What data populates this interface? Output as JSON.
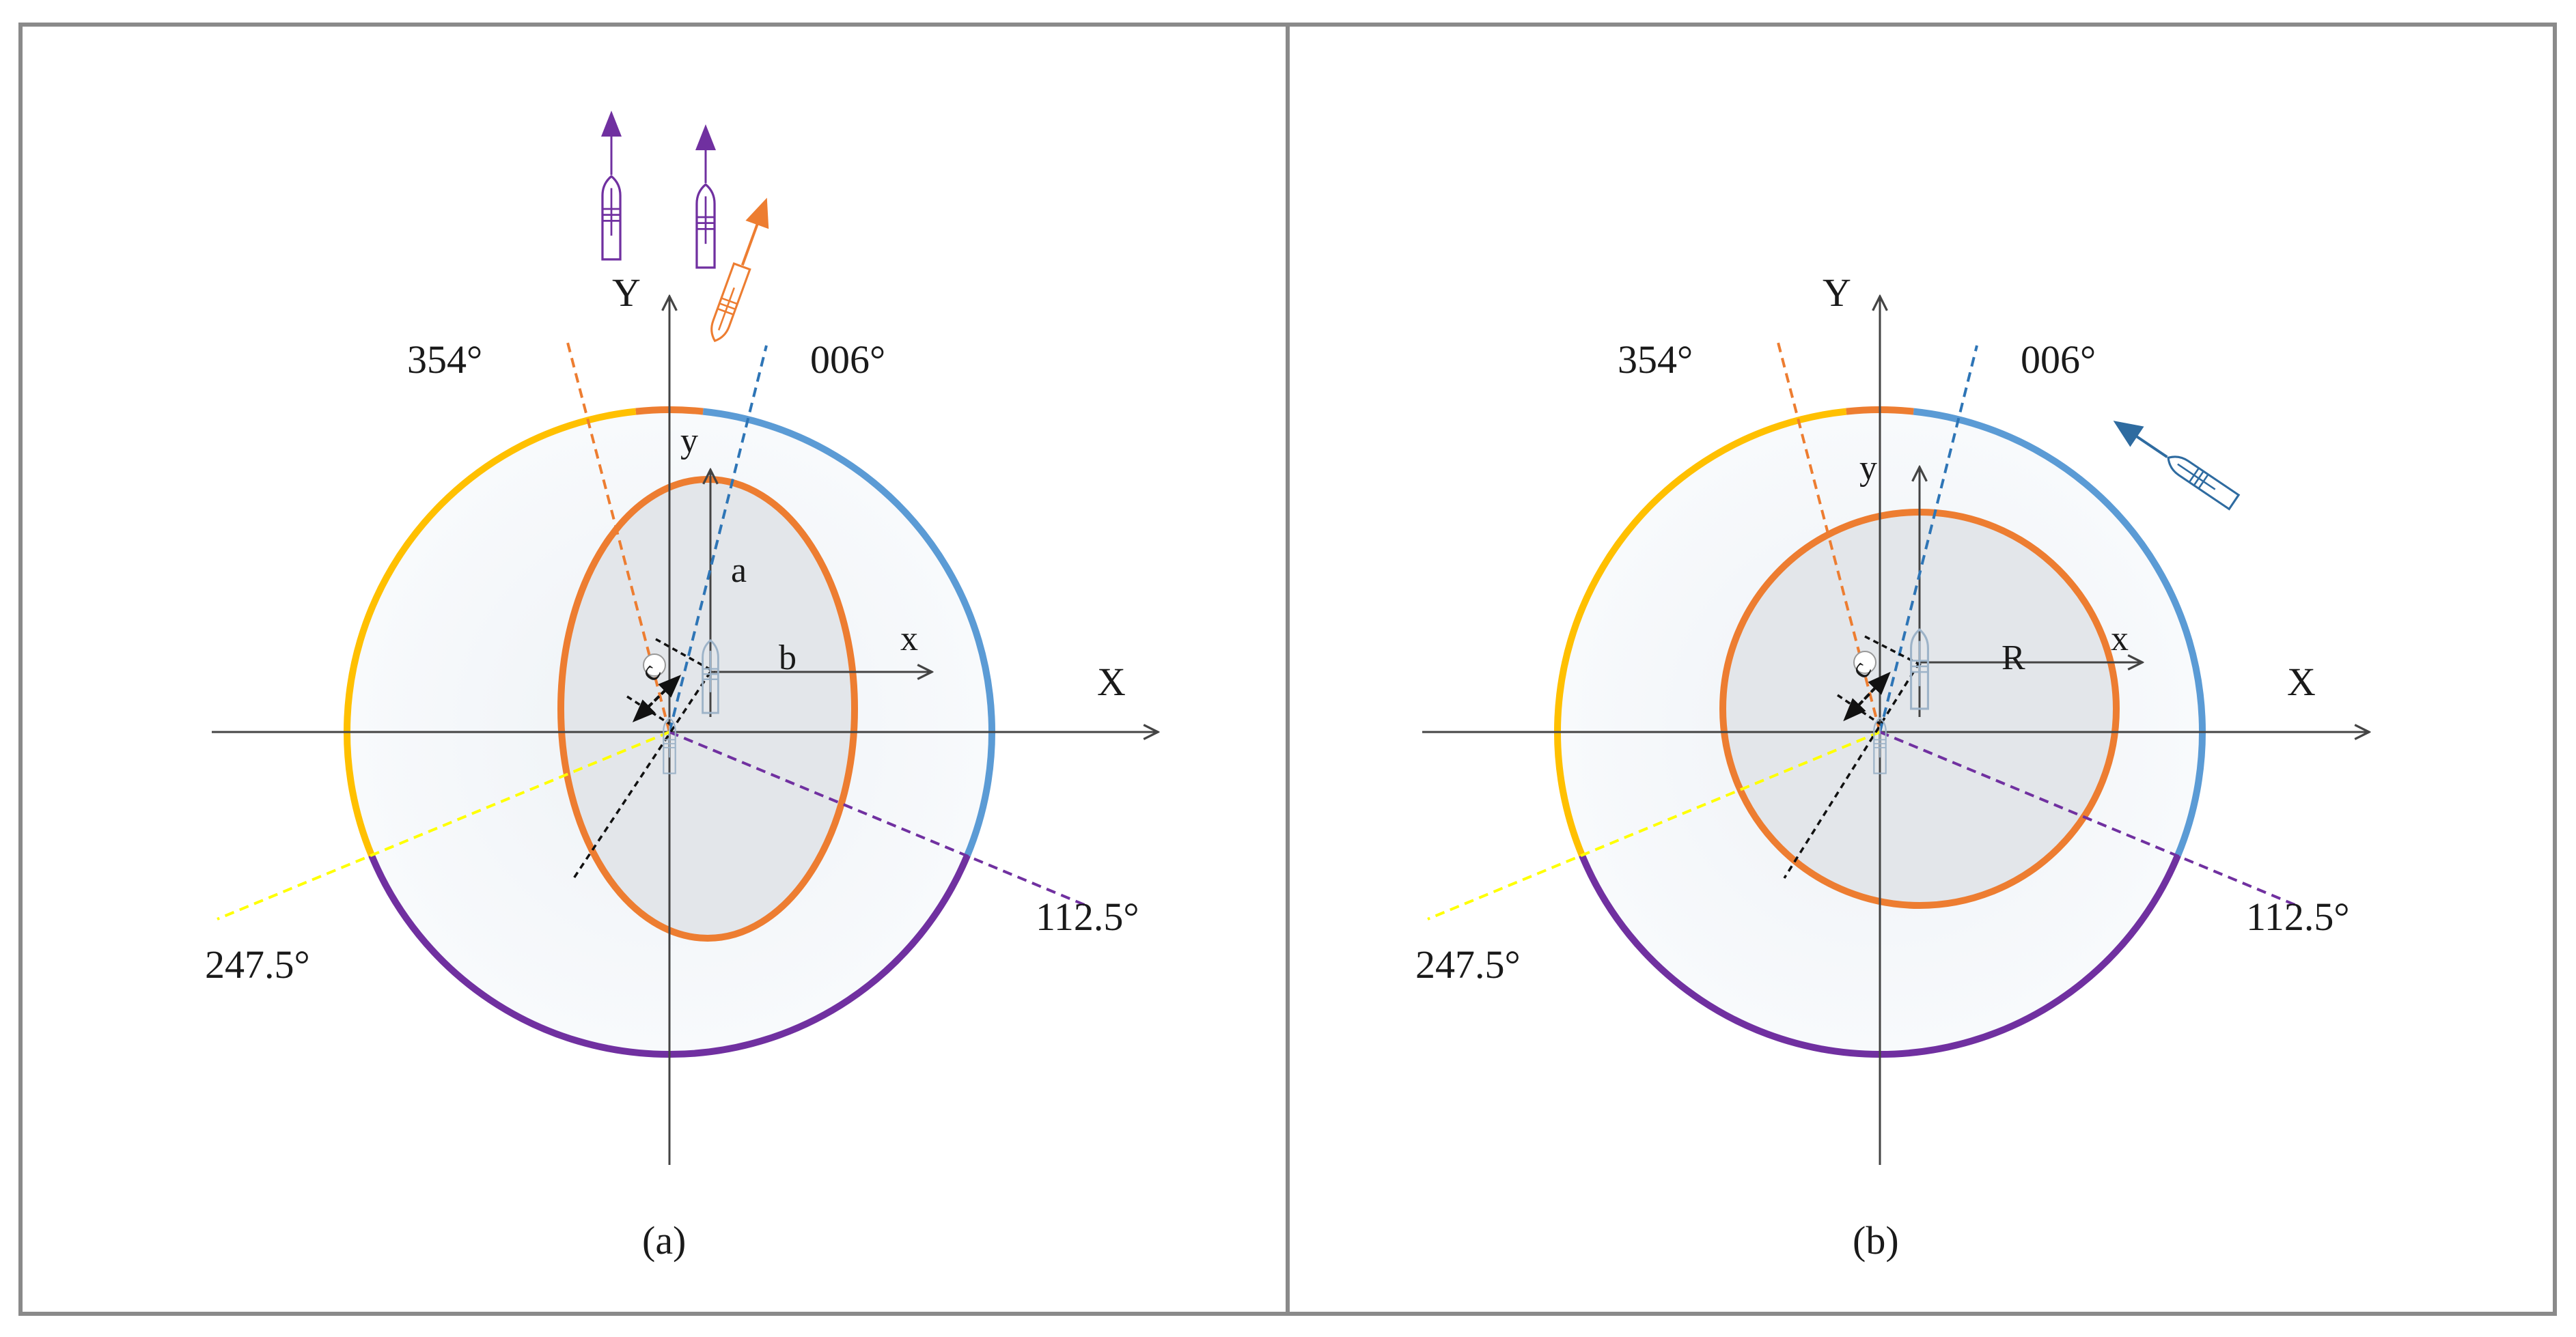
{
  "panels": [
    {
      "caption": "(a)",
      "axis_x": "X",
      "axis_y": "Y",
      "local_x": "x",
      "local_y": "y",
      "shape": "ellipse",
      "dim_a": "a",
      "dim_b": "b",
      "dim_c": "c",
      "sector_labels": [
        "354°",
        "006°",
        "112.5°",
        "247.5°"
      ]
    },
    {
      "caption": "(b)",
      "axis_x": "X",
      "axis_y": "Y",
      "local_x": "x",
      "local_y": "y",
      "shape": "circle",
      "dim_r": "R",
      "dim_c": "c",
      "sector_labels": [
        "354°",
        "006°",
        "112.5°",
        "247.5°"
      ]
    }
  ],
  "colors": {
    "sector_bow": "#ED7D31",
    "sector_starboard": "#5B9BD5",
    "sector_stern": "#7030A0",
    "sector_port": "#FFC000",
    "port_line": "#FFFF00",
    "domain_fill": "#E3E6EA",
    "outer_fill": "#F4F7FA",
    "target_ship_purple": "#7030A0",
    "target_ship_orange": "#ED7D31",
    "target_ship_blue": "#2E6BA0"
  }
}
